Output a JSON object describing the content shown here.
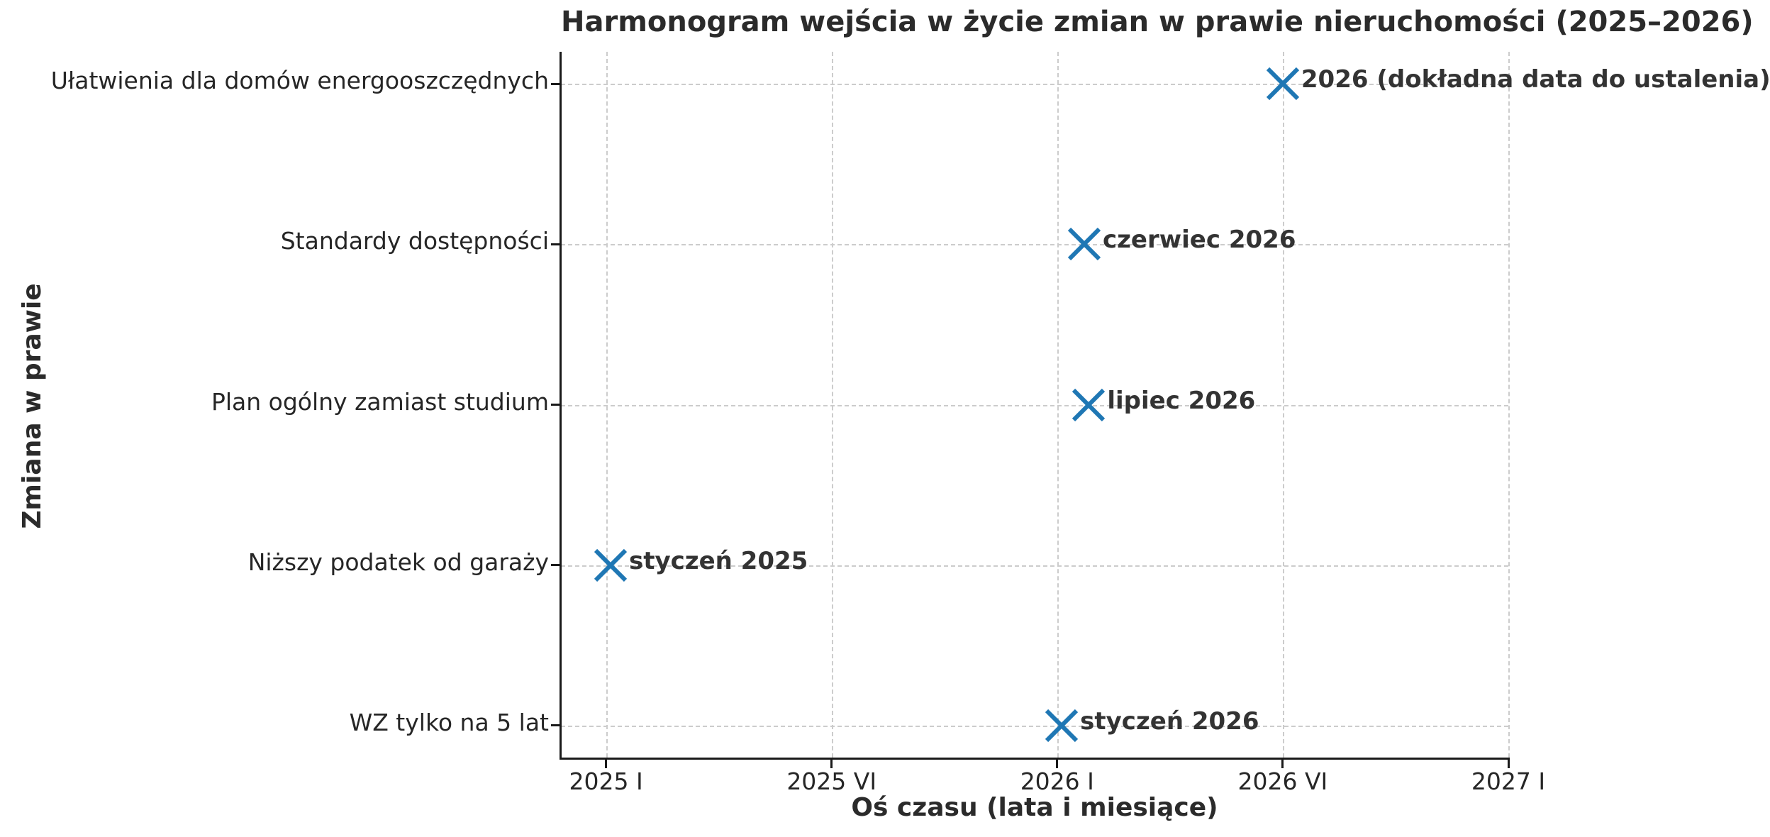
{
  "chart_data": {
    "type": "scatter",
    "title": "Harmonogram wejścia w życie zmian w prawie nieruchomości (2025–2026)",
    "xlabel": "Oś czasu (lata i miesiące)",
    "ylabel": "Zmiana w prawie",
    "categories": [
      "Ułatwienia dla domów energooszczędnych",
      "Standardy dostępności",
      "Plan ogólny zamiast studium",
      "Niższy podatek od garaży",
      "WZ tylko na 5 lat"
    ],
    "points": [
      {
        "category": "Ułatwienia dla domów energooszczędnych",
        "x": 2026.5,
        "label": "2026 (dokładna data do ustalenia)"
      },
      {
        "category": "Standardy dostępności",
        "x": 2026.06,
        "label": "czerwiec 2026"
      },
      {
        "category": "Plan ogólny zamiast studium",
        "x": 2026.07,
        "label": "lipiec 2026"
      },
      {
        "category": "Niższy podatek od garaży",
        "x": 2025.01,
        "label": "styczeń 2025"
      },
      {
        "category": "WZ tylko na 5 lat",
        "x": 2026.01,
        "label": "styczeń 2026"
      }
    ],
    "x_ticks": [
      {
        "value": 2025.0,
        "label": "2025 I"
      },
      {
        "value": 2025.5,
        "label": "2025 VI"
      },
      {
        "value": 2026.0,
        "label": "2026 I"
      },
      {
        "value": 2026.5,
        "label": "2026 VI"
      },
      {
        "value": 2027.0,
        "label": "2027 I"
      }
    ],
    "x_range": [
      2024.9,
      2027.0
    ],
    "y_margin": 0.2,
    "grid": "dashed",
    "legend": "none",
    "marker": {
      "shape": "x",
      "color": "#1f77b4",
      "size": 48,
      "stroke": 6
    },
    "colors": {
      "marker": "#1f77b4",
      "grid": "#cccccc",
      "spine": "#1a1a1a",
      "text": "#2b2b2b"
    }
  }
}
